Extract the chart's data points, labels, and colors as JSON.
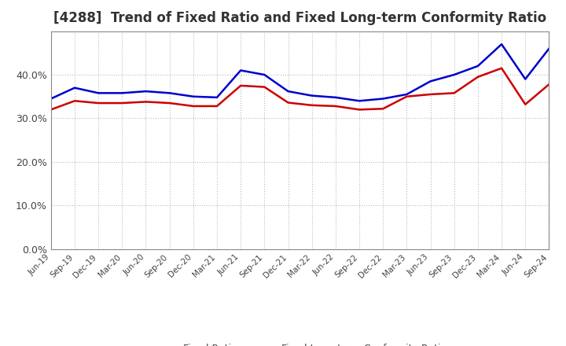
{
  "title": "[4288]  Trend of Fixed Ratio and Fixed Long-term Conformity Ratio",
  "x_labels": [
    "Jun-19",
    "Sep-19",
    "Dec-19",
    "Mar-20",
    "Jun-20",
    "Sep-20",
    "Dec-20",
    "Mar-21",
    "Jun-21",
    "Sep-21",
    "Dec-21",
    "Mar-22",
    "Jun-22",
    "Sep-22",
    "Dec-22",
    "Mar-23",
    "Jun-23",
    "Sep-23",
    "Dec-23",
    "Mar-24",
    "Jun-24",
    "Sep-24"
  ],
  "fixed_ratio": [
    0.345,
    0.37,
    0.358,
    0.358,
    0.362,
    0.358,
    0.35,
    0.348,
    0.41,
    0.4,
    0.362,
    0.352,
    0.348,
    0.34,
    0.345,
    0.355,
    0.385,
    0.4,
    0.42,
    0.47,
    0.39,
    0.46
  ],
  "fixed_lt_conformity": [
    0.32,
    0.34,
    0.335,
    0.335,
    0.338,
    0.335,
    0.328,
    0.328,
    0.375,
    0.372,
    0.336,
    0.33,
    0.328,
    0.32,
    0.322,
    0.35,
    0.355,
    0.358,
    0.395,
    0.415,
    0.332,
    0.378
  ],
  "fixed_ratio_color": "#0000cc",
  "fixed_lt_color": "#cc0000",
  "ylim": [
    0.0,
    0.5
  ],
  "yticks": [
    0.0,
    0.1,
    0.2,
    0.3,
    0.4
  ],
  "background_color": "#ffffff",
  "grid_color": "#bbbbbb",
  "title_fontsize": 12,
  "legend_fixed_ratio": "Fixed Ratio",
  "legend_fixed_lt": "Fixed Long-term Conformity Ratio"
}
